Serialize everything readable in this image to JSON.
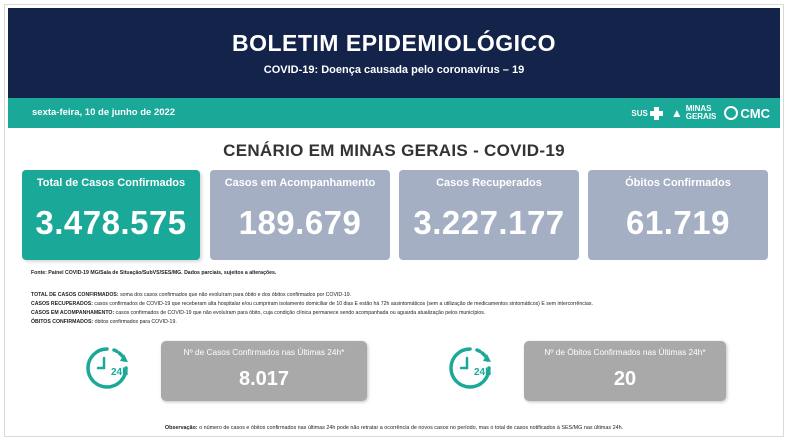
{
  "header": {
    "title": "BOLETIM EPIDEMIOLÓGICO",
    "subtitle": "COVID-19: Doença causada pelo coronavírus – 19"
  },
  "datebar": {
    "date": "sexta-feira, 10 de junho de 2022",
    "logos": {
      "sus": "SUS",
      "mg_label_1": "MINAS",
      "mg_label_2": "GERAIS",
      "cmc": "CMC"
    }
  },
  "section_title": "CENÁRIO EM MINAS GERAIS - COVID-19",
  "cards": [
    {
      "label": "Total de Casos Confirmados",
      "value": "3.478.575"
    },
    {
      "label": "Casos em Acompanhamento",
      "value": "189.679"
    },
    {
      "label": "Casos Recuperados",
      "value": "3.227.177"
    },
    {
      "label": "Óbitos Confirmados",
      "value": "61.719"
    }
  ],
  "source": "Fonte: Painel COVID-19 MG/Sala de Situação/SubVS/SES/MG. Dados parciais, sujeitos a alterações.",
  "definitions": [
    {
      "term": "TOTAL DE  CASOS CONFIRMADOS:",
      "text": " soma dos casos confirmados que não evoluíram para óbito e dos óbitos confirmados por COVID-19."
    },
    {
      "term": "CASOS RECUPERADOS:",
      "text": " casos confirmados de COVID-19 que receberam alta hospitalar e/ou cumpriram isolamento domiciliar de 10 dias E estão há 72h assintomáticos (sem a utilização de medicamentos sintomáticos) E sem intercorrências."
    },
    {
      "term": "CASOS EM ACOMPANHAMENTO:",
      "text": " casos confirmados de COVID-19 que não evoluíram para óbito, cuja condição clínica permanece sendo acompanhada ou aguarda atualização pelos municípios."
    },
    {
      "term": "ÓBITOS CONFIRMADOS:",
      "text": " óbitos confirmados para COVID-19."
    }
  ],
  "last24h": [
    {
      "label": "Nº de Casos Confirmados nas Últimas 24h*",
      "value": "8.017",
      "icon": "clock-24h-icon"
    },
    {
      "label": "Nº de Óbitos Confirmados nas Últimas 24h*",
      "value": "20",
      "icon": "clock-24h-icon"
    }
  ],
  "clock_text": "24h",
  "observation": {
    "term": "Observação:",
    "text": " o número de casos e óbitos confirmados nas últimas 24h pode não retratar a ocorrência de novos casos no período, mas o total de casos notificados à SES/MG nas últimas 24h."
  },
  "colors": {
    "header_bg": "#14234a",
    "teal": "#1aa898",
    "card_gray": "#a4afc4",
    "box_gray": "#a9a9a9"
  }
}
